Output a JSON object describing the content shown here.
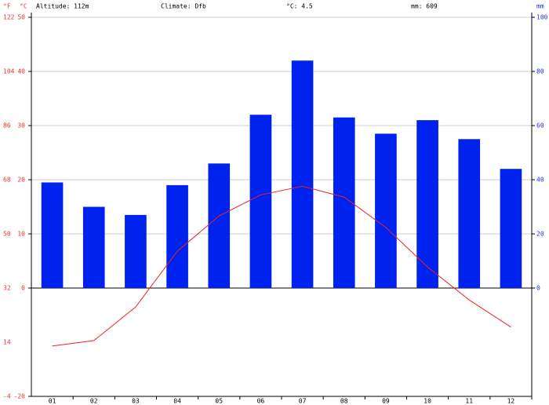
{
  "chart_data": {
    "type": "climate",
    "annotations": [
      "Altitude: 112m",
      "Climate: Dfb",
      "°C: 4.5",
      "mm: 609"
    ],
    "y_label": "°C",
    "y2_label": "mm",
    "y3_label": "°F",
    "categories": [
      "01",
      "02",
      "03",
      "04",
      "05",
      "06",
      "07",
      "08",
      "09",
      "10",
      "11",
      "12"
    ],
    "ylim": [
      -20,
      50
    ],
    "yticks": [
      -20,
      0,
      10,
      20,
      30,
      40,
      50
    ],
    "y3lim": [
      -4,
      122
    ],
    "y3ticks": [
      -4,
      14,
      32,
      50,
      68,
      86,
      104,
      122
    ],
    "y2lim": [
      -40,
      100
    ],
    "y2ticks": [
      0,
      20,
      40,
      60,
      80,
      100
    ],
    "grid": true,
    "series": [
      {
        "name": "Precipitation",
        "type": "bar",
        "axis": "y2",
        "color": "#0022ee",
        "values": [
          39,
          30,
          27,
          38,
          46,
          64,
          84,
          63,
          57,
          62,
          55,
          44
        ]
      },
      {
        "name": "Temperature",
        "type": "line",
        "axis": "y",
        "color": "#ee2222",
        "values": [
          -10.7,
          -9.7,
          -3.5,
          6.8,
          13.3,
          17.2,
          18.8,
          16.8,
          11.2,
          3.9,
          -2.2,
          -7.2
        ]
      }
    ]
  }
}
